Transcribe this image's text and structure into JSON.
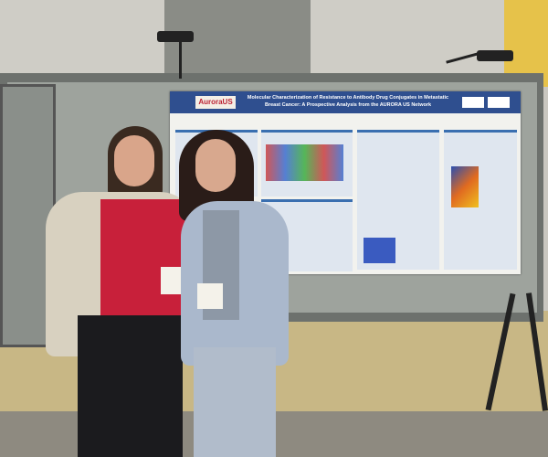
{
  "poster": {
    "logo_text": "AuroraUS",
    "title": "Molecular Characterization of Resistance to Antibody Drug Conjugates in Metastatic Breast Cancer: A Prospective Analysis from the AURORA US Network"
  },
  "colors": {
    "poster_header": "#2f4f8f",
    "wall_accent": "#e6c24a",
    "lanyard": "#e0502a"
  }
}
